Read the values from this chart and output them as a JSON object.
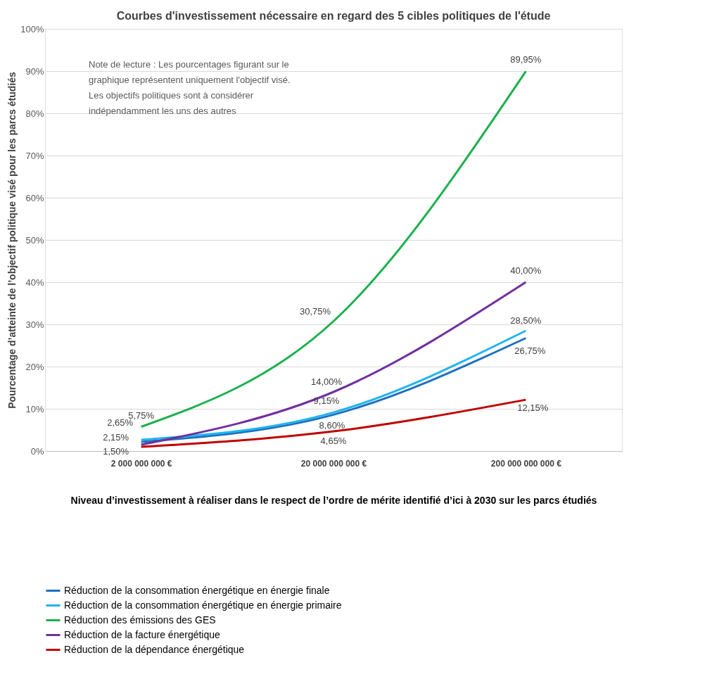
{
  "chart_data": {
    "type": "line",
    "title": "Courbes d'investissement nécessaire en regard des 5 cibles politiques de l'étude",
    "xlabel": "Niveau d’investissement à réaliser dans le respect de l’ordre de mérite identifié d’ici à 2030 sur les parcs étudiés",
    "ylabel": "Pourcentage d’atteinte de l’objectif politique visé pour les parcs étudiés",
    "categories": [
      "2 000 000 000 €",
      "20 000 000 000 €",
      "200 000 000 000 €"
    ],
    "series": [
      {
        "name": "Réduction de la consommation énergétique en énergie finale",
        "color": "#1f6fbf",
        "values": [
          2.15,
          8.6,
          26.75
        ],
        "value_labels": [
          "2,15%",
          "8,60%",
          "26,75%"
        ]
      },
      {
        "name": "Réduction de la consommation énergétique en énergie primaire",
        "color": "#1fb4f0",
        "values": [
          2.65,
          9.15,
          28.5
        ],
        "value_labels": [
          "2,65%",
          "9,15%",
          "28,50%"
        ]
      },
      {
        "name": "Réduction des émissions des GES",
        "color": "#1bb04d",
        "values": [
          5.75,
          30.75,
          89.95
        ],
        "value_labels": [
          "5,75%",
          "30,75%",
          "89,95%"
        ]
      },
      {
        "name": "Réduction de la facture énergétique",
        "color": "#7030a0",
        "values": [
          1.5,
          14.0,
          40.0
        ],
        "value_labels": [
          "1,50%",
          "14,00%",
          "40,00%"
        ]
      },
      {
        "name": "Réduction de la dépendance énergétique",
        "color": "#c00000",
        "values": [
          1.0,
          4.65,
          12.15
        ],
        "value_labels": [
          null,
          "4,65%",
          "12,15%"
        ]
      }
    ],
    "ylim": [
      0,
      100
    ],
    "yticks": [
      {
        "value": 0,
        "label": "0%"
      },
      {
        "value": 10,
        "label": "10%"
      },
      {
        "value": 20,
        "label": "20%"
      },
      {
        "value": 30,
        "label": "30%"
      },
      {
        "value": 40,
        "label": "40%"
      },
      {
        "value": 50,
        "label": "50%"
      },
      {
        "value": 60,
        "label": "60%"
      },
      {
        "value": 70,
        "label": "70%"
      },
      {
        "value": 80,
        "label": "80%"
      },
      {
        "value": 90,
        "label": "90%"
      },
      {
        "value": 100,
        "label": "100%"
      }
    ],
    "grid": "y",
    "legend": "bottom",
    "marker": "none",
    "line_style": "solid",
    "annotations": [
      "Note de lecture : Les pourcentages figurant sur le graphique représentent uniquement l'objectif visé. Les objectifs politiques sont à considérer indépendamment les uns des autres"
    ]
  }
}
